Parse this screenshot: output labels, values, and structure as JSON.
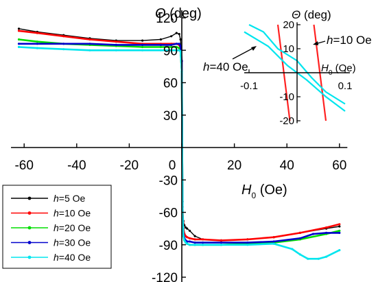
{
  "chart_data": [
    {
      "type": "line",
      "xlabel_var": "H",
      "xlabel_sub": "0",
      "xlabel_unit": " (Oe)",
      "ylabel_var": "Θ",
      "ylabel_unit": " (deg)",
      "xlim": [
        -65,
        63
      ],
      "ylim": [
        -125,
        127
      ],
      "x_ticks": [
        -60,
        -40,
        -20,
        0,
        20,
        40,
        60
      ],
      "x_tick_labels": [
        "-60",
        "-40",
        "-20",
        "0",
        "20",
        "40",
        "60"
      ],
      "y_ticks": [
        -120,
        -90,
        -60,
        -30,
        30,
        60,
        90,
        120
      ],
      "y_tick_labels": [
        "-120",
        "-90",
        "-60",
        "-30",
        "30",
        "60",
        "90",
        "120"
      ],
      "legend_position": "bottom-left",
      "series": [
        {
          "name": "h=5 Oe",
          "legend_var": "h",
          "legend_rest": "=5 Oe",
          "color": "#000000",
          "x": [
            -62,
            -55,
            -45,
            -35,
            -25,
            -15,
            -8,
            -4,
            -2,
            -1,
            -0.5,
            0,
            0.3,
            0.6,
            1.0,
            1.5,
            2,
            3,
            5,
            8,
            15,
            25,
            35,
            45,
            55,
            60
          ],
          "y": [
            110,
            107,
            104,
            101,
            99,
            99,
            100,
            103,
            106,
            105,
            100,
            80,
            -50,
            -68,
            -72,
            -74,
            -75,
            -77,
            -82,
            -85,
            -86,
            -85,
            -83,
            -79,
            -75,
            -73
          ]
        },
        {
          "name": "h=10 Oe",
          "legend_var": "h",
          "legend_rest": "=10 Oe",
          "color": "#ff0000",
          "x": [
            -62,
            -55,
            -45,
            -35,
            -25,
            -15,
            -8,
            -4,
            -2,
            -1,
            -0.5,
            0,
            0.3,
            0.6,
            1.0,
            1.5,
            2,
            3,
            5,
            8,
            15,
            25,
            35,
            45,
            55,
            60
          ],
          "y": [
            108,
            106,
            103,
            100,
            98,
            96,
            96,
            96,
            96,
            95,
            92,
            70,
            -55,
            -75,
            -80,
            -82,
            -83,
            -84,
            -85,
            -85,
            -86,
            -85,
            -83,
            -79,
            -74,
            -71
          ]
        },
        {
          "name": "h=20 Oe",
          "legend_var": "h",
          "legend_rest": "=20 Oe",
          "color": "#00dd00",
          "x": [
            -62,
            -55,
            -45,
            -35,
            -25,
            -15,
            -8,
            -4,
            -2,
            -1,
            -0.5,
            0,
            0.3,
            0.6,
            1.0,
            1.5,
            2,
            3,
            5,
            8,
            15,
            25,
            35,
            45,
            55,
            60
          ],
          "y": [
            100,
            98,
            96,
            95,
            94,
            93,
            93,
            93,
            93,
            92,
            90,
            70,
            -60,
            -82,
            -86,
            -88,
            -89,
            -90,
            -90,
            -90,
            -90,
            -89,
            -88,
            -85,
            -80,
            -77
          ]
        },
        {
          "name": "h=30 Oe",
          "legend_var": "h",
          "legend_rest": "=30 Oe",
          "color": "#0000cc",
          "x": [
            -62,
            -55,
            -45,
            -35,
            -25,
            -15,
            -8,
            -4,
            -2,
            -1,
            -0.5,
            0,
            0.3,
            0.6,
            1.0,
            1.5,
            2,
            3,
            5,
            8,
            15,
            25,
            35,
            45,
            50,
            55,
            60
          ],
          "y": [
            96,
            96,
            96,
            96,
            95,
            95,
            95,
            95,
            96,
            96,
            94,
            80,
            -60,
            -80,
            -84,
            -86,
            -87,
            -87,
            -88,
            -88,
            -88,
            -88,
            -87,
            -84,
            -80,
            -79,
            -79
          ]
        },
        {
          "name": "h=40 Oe",
          "legend_var": "h",
          "legend_rest": "=40 Oe",
          "color": "#00e5ee",
          "x": [
            -62,
            -55,
            -45,
            -35,
            -25,
            -15,
            -8,
            -4,
            -2,
            -1,
            -0.5,
            0,
            0.3,
            0.6,
            1.0,
            1.5,
            2,
            3,
            5,
            8,
            15,
            25,
            35,
            42,
            45,
            48,
            52,
            55,
            60
          ],
          "y": [
            93,
            92,
            91,
            90,
            90,
            90,
            90,
            90,
            90,
            90,
            89,
            70,
            -60,
            -82,
            -86,
            -88,
            -89,
            -90,
            -90,
            -90,
            -90,
            -90,
            -89,
            -94,
            -99,
            -103,
            -103,
            -101,
            -95
          ]
        }
      ],
      "annotations": [
        {
          "var": "h",
          "rest": "=40 Oe"
        }
      ]
    },
    {
      "type": "line",
      "xlabel_var": "H",
      "xlabel_sub": "0",
      "xlabel_unit": " (Oe)",
      "ylabel_var": "Θ",
      "ylabel_unit": " (deg)",
      "xlim": [
        -0.11,
        0.11
      ],
      "ylim": [
        -21,
        21
      ],
      "x_ticks": [
        -0.1,
        0.1
      ],
      "x_tick_labels": [
        "-0.1",
        "0.1"
      ],
      "y_ticks": [
        -20,
        -10,
        10,
        20
      ],
      "y_tick_labels": [
        "-20",
        "-10",
        "10",
        "20"
      ],
      "annotation": {
        "var": "h",
        "rest": "=10 Oe"
      },
      "series": [
        {
          "name": "",
          "color": "#ff2020",
          "x": [
            -0.04,
            -0.015
          ],
          "y": [
            20,
            -20
          ]
        },
        {
          "name": "",
          "color": "#ff2020",
          "x": [
            0.035,
            0.06
          ],
          "y": [
            20,
            -20
          ]
        },
        {
          "name": "",
          "color": "#00e5ee",
          "x": [
            -0.11,
            -0.06,
            -0.02,
            0.02,
            0.06,
            0.1
          ],
          "y": [
            17,
            11,
            3,
            -3,
            -10,
            -16
          ]
        },
        {
          "name": "",
          "color": "#00e5ee",
          "x": [
            -0.1,
            -0.07,
            -0.04,
            0.0,
            0.03,
            0.06,
            0.1
          ],
          "y": [
            20,
            17,
            10,
            5,
            -2,
            -8,
            -13
          ]
        }
      ]
    }
  ]
}
